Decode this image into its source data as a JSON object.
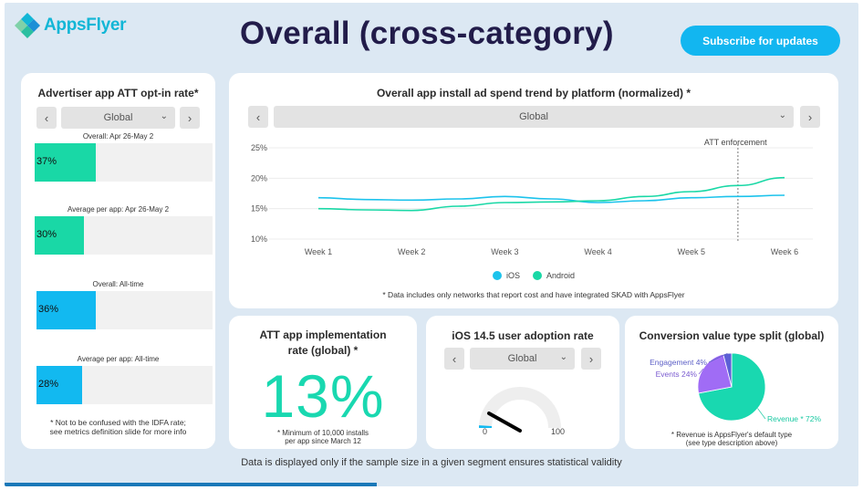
{
  "header": {
    "logo_text": "AppsFlyer",
    "page_title": "Overall (cross-category)",
    "subscribe_label": "Subscribe for updates"
  },
  "att_card": {
    "title": "Advertiser app ATT opt-in rate*",
    "prev": "‹",
    "next": "›",
    "select_value": "Global",
    "bars": [
      {
        "caption": "Overall: Apr 26-May 2",
        "value_label": "37%",
        "value": 37,
        "color": "#19d8a6"
      },
      {
        "caption": "Average per app: Apr 26-May 2",
        "value_label": "30%",
        "value": 30,
        "color": "#19d8a6"
      },
      {
        "caption": "Overall: All-time",
        "value_label": "36%",
        "value": 36,
        "color": "#12b9f0"
      },
      {
        "caption": "Average per app: All-time",
        "value_label": "28%",
        "value": 28,
        "color": "#12b9f0"
      }
    ],
    "footnote_1": "* Not to be confused with the IDFA rate;",
    "footnote_2": "see metrics definition slide for more info"
  },
  "trend_card": {
    "title": "Overall app install ad spend trend by platform (normalized) *",
    "prev": "‹",
    "next": "›",
    "select_value": "Global",
    "footnote": "* Data includes only networks that report cost and have integrated SKAD with AppsFlyer",
    "chart_data": {
      "type": "line",
      "x": [
        "Week 1",
        "Week 2",
        "Week 3",
        "Week 4",
        "Week 5",
        "Week 6"
      ],
      "y_ticks": [
        "25%",
        "20%",
        "15%",
        "10%"
      ],
      "ylim": [
        10,
        25
      ],
      "annotation": "ATT enforcement",
      "annotation_x": 5.5,
      "series": [
        {
          "name": "iOS",
          "color": "#1cc3ec",
          "x": [
            1,
            1.5,
            2,
            2.5,
            3,
            3.5,
            4,
            4.5,
            5,
            5.5,
            6
          ],
          "values": [
            16.8,
            16.5,
            16.4,
            16.6,
            17.0,
            16.6,
            16.0,
            16.3,
            16.8,
            17.0,
            17.2
          ]
        },
        {
          "name": "Android",
          "color": "#19d8a6",
          "x": [
            1,
            1.5,
            2,
            2.5,
            3,
            3.5,
            4,
            4.5,
            5,
            5.5,
            6
          ],
          "values": [
            15.0,
            14.8,
            14.7,
            15.4,
            16.0,
            16.1,
            16.3,
            17.0,
            17.8,
            18.8,
            20.1
          ]
        }
      ]
    }
  },
  "impl_card": {
    "title_line1": "ATT app implementation",
    "title_line2": "rate (global) *",
    "rate": "13%",
    "footnote_1": "* Minimum of 10,000 installs",
    "footnote_2": "per app since March 12"
  },
  "ios_card": {
    "title": "iOS 14.5 user adoption rate",
    "prev": "‹",
    "next": "›",
    "select_value": "Global",
    "gauge_min": "0",
    "gauge_max": "100",
    "gauge_value": 2
  },
  "conv_card": {
    "title": "Conversion value type split (global)",
    "footnote_1": "* Revenue is AppsFlyer's default type",
    "footnote_2": "(see type description above)",
    "chart_data": {
      "type": "pie",
      "slices": [
        {
          "label": "Revenue * 72%",
          "value": 72,
          "color": "#19d8b0",
          "label_color": "#19c9a2"
        },
        {
          "label": "Events 24%",
          "value": 24,
          "color": "#a06cf5",
          "label_color": "#7a5bd0"
        },
        {
          "label": "Engagement 4%",
          "value": 4,
          "color": "#5c5fd6",
          "label_color": "#5c5fc6"
        }
      ]
    }
  },
  "bottom_note": "Data is displayed only if the sample size in a given segment ensures statistical validity",
  "icons": {
    "logo": "appsflyer-logo-icon",
    "chevron": "chevron-down-icon"
  }
}
